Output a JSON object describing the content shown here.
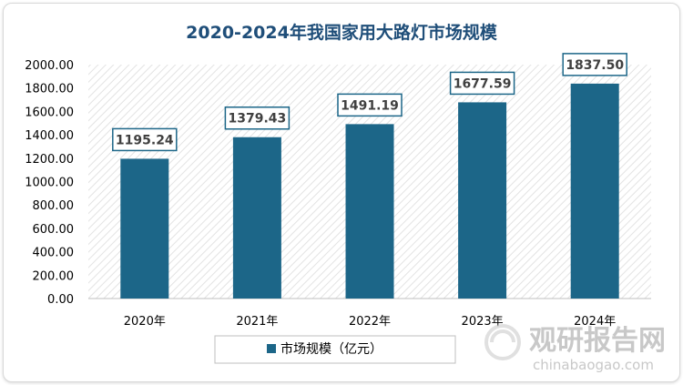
{
  "chart_data": {
    "type": "bar",
    "title": "2020-2024年我国家用大路灯市场规模",
    "categories": [
      "2020年",
      "2021年",
      "2022年",
      "2023年",
      "2024年"
    ],
    "series": [
      {
        "name": "市场规模（亿元）",
        "values": [
          1195.24,
          1379.43,
          1491.19,
          1677.59,
          1837.5
        ],
        "labels": [
          "1195.24",
          "1379.43",
          "1491.19",
          "1677.59",
          "1837.50"
        ]
      }
    ],
    "ylim": [
      0,
      2000
    ],
    "yticks": [
      "0.00",
      "200.00",
      "400.00",
      "600.00",
      "800.00",
      "1000.00",
      "1200.00",
      "1400.00",
      "1600.00",
      "1800.00",
      "2000.00"
    ],
    "ytick_values": [
      0,
      200,
      400,
      600,
      800,
      1000,
      1200,
      1400,
      1600,
      1800,
      2000
    ],
    "legend_position": "bottom",
    "colors": {
      "bar": "#1c6688",
      "label_border": "#1c6688",
      "title": "#1f4e79"
    }
  },
  "watermark": {
    "cn": "观研报告网",
    "en": "chinabaogao.com"
  }
}
